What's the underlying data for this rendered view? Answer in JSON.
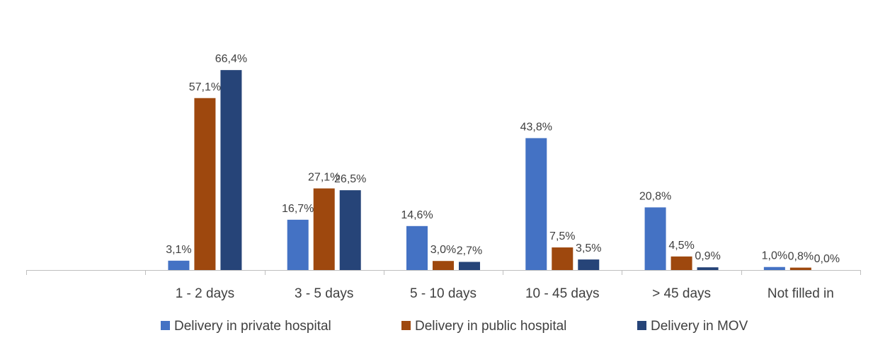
{
  "chart_data": {
    "type": "bar",
    "categories": [
      "",
      "1 - 2 days",
      "3 - 5 days",
      "5 - 10 days",
      "10 - 45 days",
      "> 45 days",
      "Not filled in"
    ],
    "series": [
      {
        "name": "Delivery in private hospital",
        "color": "#4472C4",
        "values": [
          null,
          3.1,
          16.7,
          14.6,
          43.8,
          20.8,
          1.0
        ],
        "labels": [
          "",
          "3,1%",
          "16,7%",
          "14,6%",
          "43,8%",
          "20,8%",
          "1,0%"
        ]
      },
      {
        "name": "Delivery in public hospital",
        "color": "#9E480E",
        "values": [
          null,
          57.1,
          27.1,
          3.0,
          7.5,
          4.5,
          0.8
        ],
        "labels": [
          "",
          "57,1%",
          "27,1%",
          "3,0%",
          "7,5%",
          "4,5%",
          "0,8%"
        ]
      },
      {
        "name": "Delivery in MOV",
        "color": "#264478",
        "values": [
          null,
          66.4,
          26.5,
          2.7,
          3.5,
          0.9,
          0.0
        ],
        "labels": [
          "",
          "66,4%",
          "26,5%",
          "2,7%",
          "3,5%",
          "0,9%",
          "0,0%"
        ]
      }
    ],
    "title": "",
    "xlabel": "",
    "ylabel": "",
    "ylim": [
      0,
      70
    ],
    "grid": false,
    "legend_position": "bottom"
  }
}
